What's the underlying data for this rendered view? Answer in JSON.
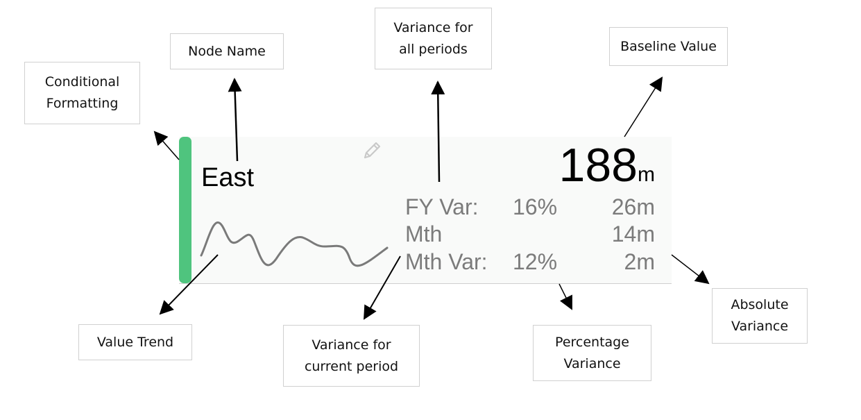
{
  "annotations": {
    "conditional_formatting": "Conditional\nFormatting",
    "node_name": "Node Name",
    "variance_all_periods": "Variance for\nall periods",
    "baseline_value": "Baseline Value",
    "value_trend": "Value Trend",
    "variance_current_period": "Variance for\ncurrent period",
    "percentage_variance": "Percentage\nVariance",
    "absolute_variance": "Absolute\nVariance"
  },
  "card": {
    "node_name": "East",
    "baseline_value": "188",
    "baseline_unit": "m",
    "status_color": "#4fc47e",
    "rows": [
      {
        "label": "FY Var:",
        "pct": "16%",
        "abs": "26m"
      },
      {
        "label": "Mth",
        "pct": "",
        "abs": "14m"
      },
      {
        "label": "Mth Var:",
        "pct": "12%",
        "abs": "2m"
      }
    ],
    "icons": {
      "edit": "pencil-icon"
    }
  }
}
